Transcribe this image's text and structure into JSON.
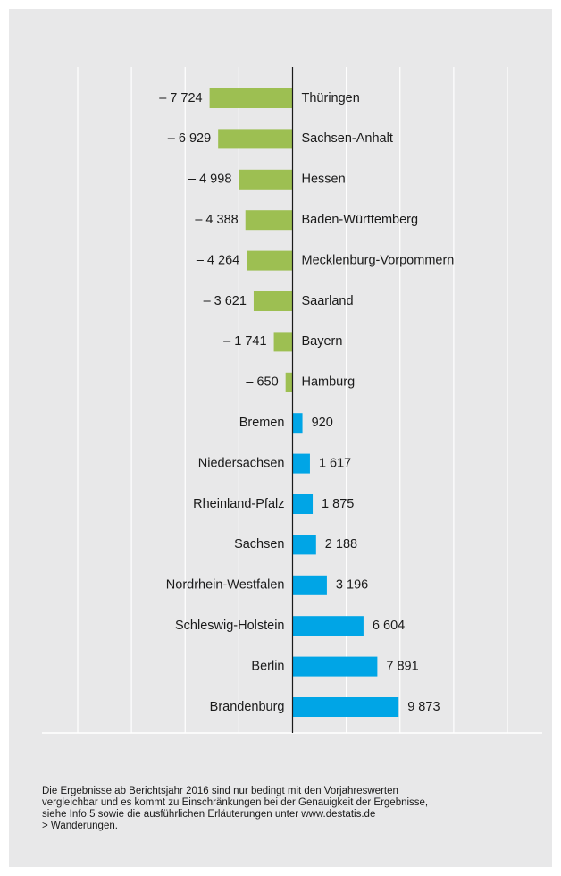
{
  "chart_data": {
    "type": "bar",
    "orientation": "horizontal",
    "categories": [
      "Thüringen",
      "Sachsen-Anhalt",
      "Hessen",
      "Baden-Württemberg",
      "Mecklenburg-Vorpommern",
      "Saarland",
      "Bayern",
      "Hamburg",
      "Bremen",
      "Niedersachsen",
      "Rheinland-Pfalz",
      "Sachsen",
      "Nordrhein-Westfalen",
      "Schleswig-Holstein",
      "Berlin",
      "Brandenburg"
    ],
    "values": [
      -7724,
      -6929,
      -4998,
      -4388,
      -4264,
      -3621,
      -1741,
      -650,
      920,
      1617,
      1875,
      2188,
      3196,
      6604,
      7891,
      9873
    ],
    "value_labels": [
      "– 7 724",
      "– 6 929",
      "– 4 998",
      "– 4 388",
      "– 4 264",
      "– 3 621",
      "– 1 741",
      "– 650",
      "920",
      "1 617",
      "1 875",
      "2 188",
      "3 196",
      "6 604",
      "7 891",
      "9 873"
    ],
    "negative_color": "#9dbf52",
    "positive_color": "#00a5e6",
    "xlim": [
      -20000,
      20000
    ],
    "xticks": [
      -20000,
      -15000,
      -10000,
      -5000,
      0,
      5000,
      10000,
      15000,
      20000
    ],
    "grid": true,
    "footnote": [
      "Die Ergebnisse ab Berichtsjahr 2016 sind nur bedingt mit den Vorjahreswerten",
      "vergleichbar und es kommt zu Einschränkungen bei der Genauigkeit der Ergebnisse,",
      "siehe Info 5 sowie die ausführlichen Erläuterungen unter www.destatis.de",
      "> Wanderungen."
    ]
  }
}
